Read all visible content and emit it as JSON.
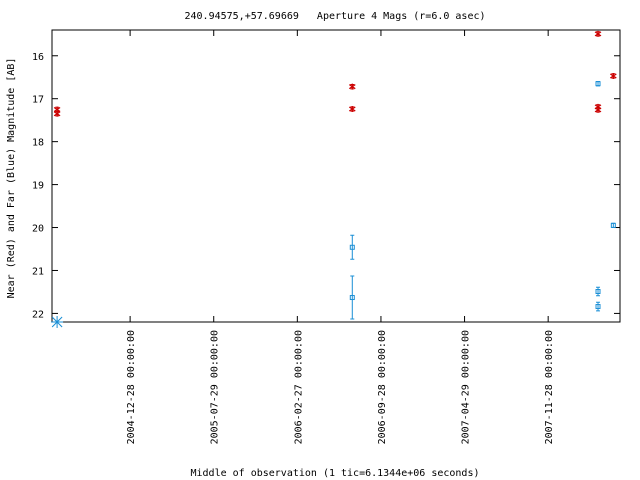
{
  "chart_data": {
    "type": "scatter",
    "title": "240.94575,+57.69669   Aperture 4 Mags (r=6.0 asec)",
    "x_label": "Middle of observation (1 tic=6.1344e+06 seconds)",
    "y_label": "Near (Red) and Far (Blue) Magnitude [AB]",
    "xlim": [
      "2004-06-12 00:00:00",
      "2008-05-29 00:00:00"
    ],
    "xticks": [
      "2004-12-28 00:00:00",
      "2005-07-29 00:00:00",
      "2006-02-27 00:00:00",
      "2006-09-28 00:00:00",
      "2007-04-29 00:00:00",
      "2007-11-28 00:00:00"
    ],
    "ylim": [
      22.2,
      15.4
    ],
    "yticks": [
      16,
      17,
      18,
      19,
      20,
      21,
      22
    ],
    "series": [
      {
        "color": "#cc0000",
        "marker": "cross",
        "x": [
          "2004-06-25 00:00:00",
          "2004-06-25 00:00:00",
          "2006-07-17 00:00:00",
          "2006-07-17 00:00:00",
          "2008-04-03 00:00:00",
          "2008-04-03 00:00:00",
          "2008-04-03 00:00:00",
          "2008-05-12 00:00:00"
        ],
        "values": [
          17.25,
          17.35,
          16.72,
          17.24,
          15.49,
          17.19,
          17.26,
          16.47
        ],
        "errors": [
          0.05,
          0.05,
          0.05,
          0.05,
          0.05,
          0.05,
          0.05,
          0.05
        ]
      },
      {
        "color": "#1a8fd6",
        "marker": "square",
        "x": [
          "2006-07-17 00:00:00",
          "2006-07-17 00:00:00",
          "2008-04-03 00:00:00",
          "2008-04-03 00:00:00",
          "2008-04-03 00:00:00",
          "2008-05-12 00:00:00"
        ],
        "values": [
          20.46,
          21.63,
          16.65,
          21.49,
          21.84,
          19.95
        ],
        "errors": [
          0.28,
          0.5,
          0.05,
          0.1,
          0.1,
          0.05
        ]
      },
      {
        "color": "#1a8fd6",
        "marker": "star",
        "x": [
          "2004-06-25 00:00:00"
        ],
        "values": [
          22.2
        ]
      }
    ]
  }
}
